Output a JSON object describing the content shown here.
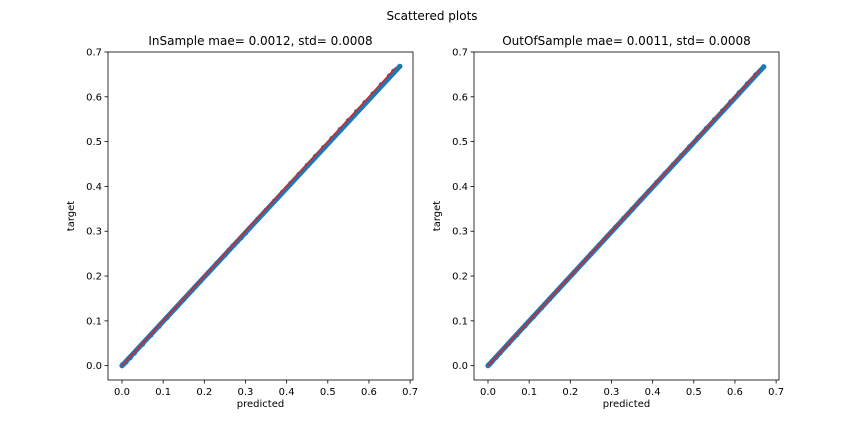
{
  "figure": {
    "suptitle": "Scattered plots"
  },
  "colors": {
    "points": "#1f77b4",
    "line": "#d62728",
    "background": "#ffffff"
  },
  "chart_data": [
    {
      "type": "scatter",
      "title": "InSample mae=  0.0012, std=  0.0008",
      "xlabel": "predicted",
      "ylabel": "target",
      "xlim": [
        -0.034,
        0.707
      ],
      "ylim": [
        -0.032,
        0.7
      ],
      "xticks": [
        0.0,
        0.1,
        0.2,
        0.3,
        0.4,
        0.5,
        0.6,
        0.7
      ],
      "xtick_labels": [
        "0.0",
        "0.1",
        "0.2",
        "0.3",
        "0.4",
        "0.5",
        "0.6",
        "0.7"
      ],
      "yticks": [
        0.0,
        0.1,
        0.2,
        0.3,
        0.4,
        0.5,
        0.6,
        0.7
      ],
      "ytick_labels": [
        "0.0",
        "0.1",
        "0.2",
        "0.3",
        "0.4",
        "0.5",
        "0.6",
        "0.7"
      ],
      "grid": false,
      "series": [
        {
          "kind": "points",
          "x": [
            0.0,
            0.002,
            0.005,
            0.01,
            0.02,
            0.03,
            0.05,
            0.07,
            0.09,
            0.11,
            0.13,
            0.15,
            0.17,
            0.19,
            0.21,
            0.23,
            0.25,
            0.26,
            0.27,
            0.28,
            0.29,
            0.3,
            0.31,
            0.33,
            0.35,
            0.37,
            0.39,
            0.41,
            0.43,
            0.45,
            0.47,
            0.49,
            0.51,
            0.53,
            0.55,
            0.57,
            0.59,
            0.61,
            0.63,
            0.65,
            0.66,
            0.675
          ],
          "y": [
            0.0,
            0.003,
            0.004,
            0.008,
            0.018,
            0.028,
            0.048,
            0.068,
            0.088,
            0.108,
            0.128,
            0.148,
            0.168,
            0.188,
            0.208,
            0.228,
            0.247,
            0.258,
            0.268,
            0.277,
            0.286,
            0.296,
            0.307,
            0.327,
            0.347,
            0.367,
            0.387,
            0.407,
            0.427,
            0.447,
            0.467,
            0.487,
            0.507,
            0.527,
            0.547,
            0.567,
            0.587,
            0.607,
            0.627,
            0.647,
            0.657,
            0.668
          ]
        },
        {
          "kind": "line",
          "x": [
            0.0,
            0.665
          ],
          "y": [
            0.0,
            0.665
          ]
        }
      ]
    },
    {
      "type": "scatter",
      "title": "OutOfSample mae=  0.0011, std=  0.0008",
      "xlabel": "predicted",
      "ylabel": "target",
      "xlim": [
        -0.034,
        0.707
      ],
      "ylim": [
        -0.032,
        0.7
      ],
      "xticks": [
        0.0,
        0.1,
        0.2,
        0.3,
        0.4,
        0.5,
        0.6,
        0.7
      ],
      "xtick_labels": [
        "0.0",
        "0.1",
        "0.2",
        "0.3",
        "0.4",
        "0.5",
        "0.6",
        "0.7"
      ],
      "yticks": [
        0.0,
        0.1,
        0.2,
        0.3,
        0.4,
        0.5,
        0.6,
        0.7
      ],
      "ytick_labels": [
        "0.0",
        "0.1",
        "0.2",
        "0.3",
        "0.4",
        "0.5",
        "0.6",
        "0.7"
      ],
      "grid": false,
      "series": [
        {
          "kind": "points",
          "x": [
            0.0,
            0.002,
            0.005,
            0.01,
            0.02,
            0.03,
            0.05,
            0.07,
            0.09,
            0.11,
            0.13,
            0.15,
            0.17,
            0.19,
            0.21,
            0.23,
            0.25,
            0.27,
            0.29,
            0.31,
            0.33,
            0.35,
            0.37,
            0.39,
            0.41,
            0.43,
            0.45,
            0.47,
            0.49,
            0.51,
            0.53,
            0.55,
            0.57,
            0.59,
            0.61,
            0.63,
            0.65,
            0.67
          ],
          "y": [
            0.0,
            0.002,
            0.004,
            0.009,
            0.019,
            0.029,
            0.049,
            0.069,
            0.089,
            0.109,
            0.129,
            0.149,
            0.169,
            0.189,
            0.209,
            0.229,
            0.249,
            0.269,
            0.289,
            0.309,
            0.329,
            0.349,
            0.369,
            0.389,
            0.409,
            0.429,
            0.449,
            0.469,
            0.489,
            0.509,
            0.529,
            0.549,
            0.569,
            0.589,
            0.609,
            0.629,
            0.649,
            0.667
          ]
        },
        {
          "kind": "line",
          "x": [
            0.0,
            0.66
          ],
          "y": [
            0.0,
            0.66
          ]
        }
      ]
    }
  ]
}
